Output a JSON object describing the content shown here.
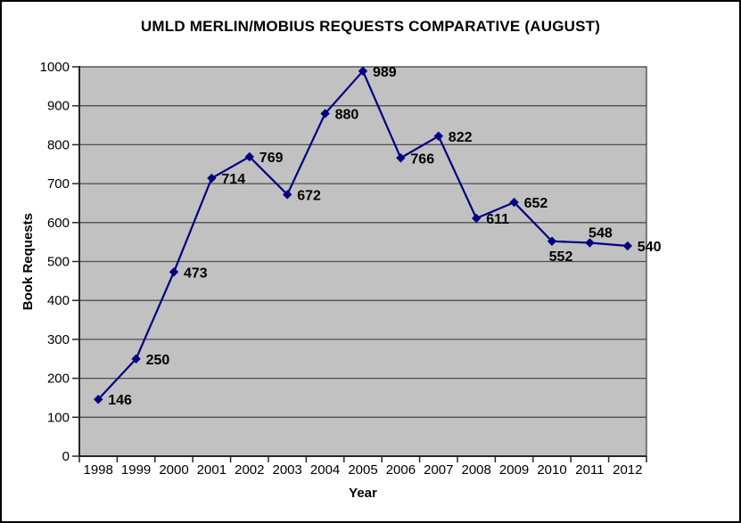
{
  "chart_data": {
    "type": "line",
    "title": "UMLD MERLIN/MOBIUS REQUESTS COMPARATIVE (AUGUST)",
    "xlabel": "Year",
    "ylabel": "Book Requests",
    "categories": [
      "1998",
      "1999",
      "2000",
      "2001",
      "2002",
      "2003",
      "2004",
      "2005",
      "2006",
      "2007",
      "2008",
      "2009",
      "2010",
      "2011",
      "2012"
    ],
    "series": [
      {
        "name": "Book Requests",
        "values": [
          146,
          250,
          473,
          714,
          769,
          672,
          880,
          989,
          766,
          822,
          611,
          652,
          552,
          548,
          540
        ]
      }
    ],
    "data_labels_shown": true,
    "label_placement": [
      "right",
      "right",
      "right",
      "right",
      "right",
      "right",
      "right",
      "right",
      "right",
      "right",
      "right",
      "right",
      "below",
      "above",
      "right"
    ],
    "ylim": [
      0,
      1000
    ],
    "ytick_step": 100,
    "grid": true,
    "legend": "none",
    "marker_style": "diamond",
    "colors": {
      "line": "#000080",
      "marker": "#000080",
      "plot_background": "#C1C1C1",
      "gridline": "#4E4E4E",
      "axis": "#262626",
      "text": "#000000",
      "outer_border": "#000000",
      "page_background": "#FFFFFF"
    }
  }
}
